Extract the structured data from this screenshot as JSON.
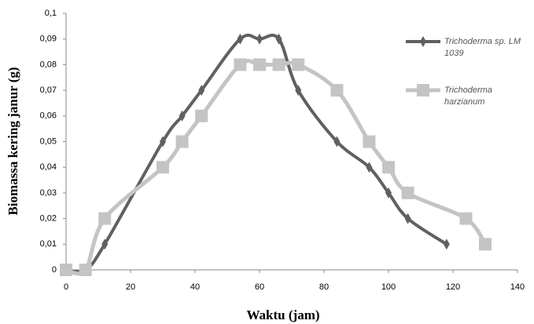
{
  "chart_data": {
    "type": "line",
    "xlabel": "Waktu (jam)",
    "ylabel": "Biomassa kering janur (g)",
    "xlim": [
      0,
      140
    ],
    "xticks": [
      0,
      20,
      40,
      60,
      80,
      100,
      120,
      140
    ],
    "ylim": [
      0,
      0.1
    ],
    "yticks": [
      0,
      {
        "value": 0.01,
        "label": "0,01"
      },
      {
        "value": 0.02,
        "label": "0,02"
      },
      {
        "value": 0.03,
        "label": "0,03"
      },
      {
        "value": 0.04,
        "label": "0,04"
      },
      {
        "value": 0.05,
        "label": "0,05"
      },
      {
        "value": 0.06,
        "label": "0,06"
      },
      {
        "value": 0.07,
        "label": "0,07"
      },
      {
        "value": 0.08,
        "label": "0,08"
      },
      {
        "value": 0.09,
        "label": "0,09"
      },
      {
        "value": 0.1,
        "label": "0,1"
      }
    ],
    "series": [
      {
        "name": "Trichoderma sp. LM 1039",
        "color": "#606060",
        "marker": "diamond",
        "x": [
          0,
          6,
          12,
          30,
          36,
          42,
          54,
          60,
          66,
          72,
          84,
          94,
          100,
          106,
          118
        ],
        "values": [
          0,
          0,
          0.01,
          0.05,
          0.06,
          0.07,
          0.09,
          0.09,
          0.09,
          0.07,
          0.05,
          0.04,
          0.03,
          0.02,
          0.01
        ]
      },
      {
        "name": "Trichoderma harzianum",
        "color": "#c4c4c4",
        "marker": "square",
        "x": [
          0,
          6,
          12,
          30,
          36,
          42,
          54,
          60,
          66,
          72,
          84,
          94,
          100,
          106,
          124,
          130
        ],
        "values": [
          0,
          0,
          0.02,
          0.04,
          0.05,
          0.06,
          0.08,
          0.08,
          0.08,
          0.08,
          0.07,
          0.05,
          0.04,
          0.03,
          0.02,
          0.01
        ]
      }
    ]
  }
}
